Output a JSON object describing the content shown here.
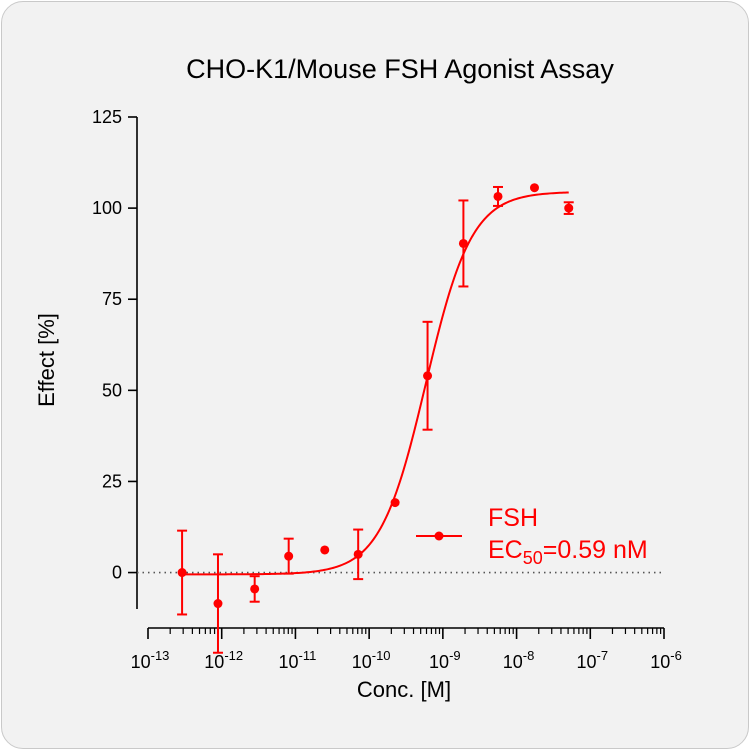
{
  "chart_data": {
    "type": "scatter",
    "title": "CHO-K1/Mouse FSH Agonist Assay",
    "xlabel": "Conc. [M]",
    "ylabel": "Effect  [%]",
    "x_scale": "log",
    "xlim": [
      1e-13,
      1e-06
    ],
    "ylim": [
      -10,
      125
    ],
    "y_ticks": [
      0,
      25,
      50,
      75,
      100,
      125
    ],
    "x_ticks": [
      {
        "base": "10",
        "exp": "-13"
      },
      {
        "base": "10",
        "exp": "-12"
      },
      {
        "base": "10",
        "exp": "-11"
      },
      {
        "base": "10",
        "exp": "-10"
      },
      {
        "base": "10",
        "exp": "-9"
      },
      {
        "base": "10",
        "exp": "-8"
      },
      {
        "base": "10",
        "exp": "-7"
      },
      {
        "base": "10",
        "exp": "-6"
      }
    ],
    "grid": false,
    "reference_line": {
      "y": 0,
      "style": "dotted"
    },
    "series": [
      {
        "name": "FSH",
        "color": "#ff0000",
        "points": [
          {
            "x": 2.9e-13,
            "y": 0.0,
            "err": 11.5
          },
          {
            "x": 8.9e-13,
            "y": -8.5,
            "err": 13.5
          },
          {
            "x": 2.8e-12,
            "y": -4.5,
            "err": 3.5
          },
          {
            "x": 8.1e-12,
            "y": 4.5,
            "err": 4.8
          },
          {
            "x": 2.5e-11,
            "y": 6.2,
            "err": 0
          },
          {
            "x": 7.1e-11,
            "y": 5.0,
            "err": 6.8
          },
          {
            "x": 2.25e-10,
            "y": 19.2,
            "err": 0
          },
          {
            "x": 6.2e-10,
            "y": 54.0,
            "err": 14.8
          },
          {
            "x": 1.9e-09,
            "y": 90.3,
            "err": 11.8
          },
          {
            "x": 5.6e-09,
            "y": 103.2,
            "err": 2.6
          },
          {
            "x": 1.75e-08,
            "y": 105.6,
            "err": 0
          },
          {
            "x": 5.1e-08,
            "y": 100.0,
            "err": 1.6
          }
        ],
        "fit": {
          "model": "4PL",
          "bottom": -0.5,
          "top": 104.5,
          "ec50_M": 5.9e-10,
          "hill": 1.4,
          "x_start": 2.9e-13,
          "x_end": 5.1e-08
        }
      }
    ],
    "legend": {
      "position": "bottom-right",
      "name": "FSH",
      "ec_prefix": "EC",
      "ec_sub": "50",
      "ec_value": "=0.59 nM"
    }
  }
}
